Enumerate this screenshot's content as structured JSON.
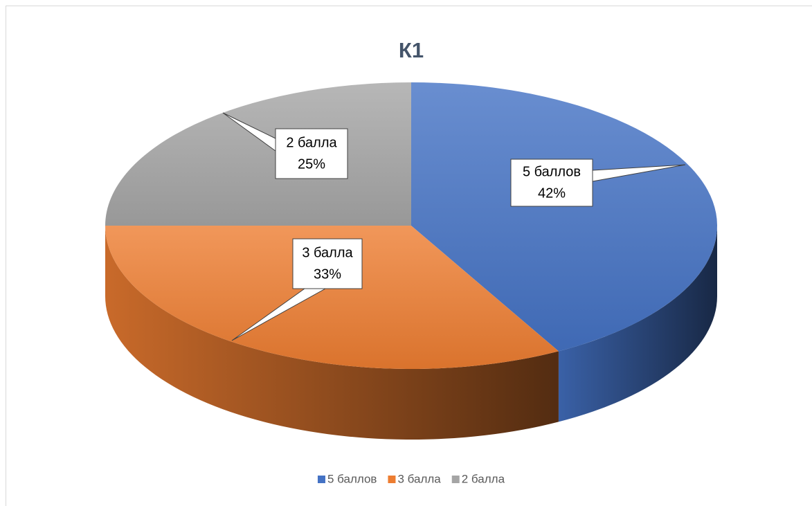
{
  "chart_data": {
    "type": "pie",
    "title": "К1",
    "categories": [
      "5 баллов",
      "3 балла",
      "2 балла"
    ],
    "values": [
      42,
      33,
      25
    ],
    "value_labels": [
      "42%",
      "33%",
      "25%"
    ],
    "colors": [
      "#4472c4",
      "#ed7d31",
      "#a5a5a5"
    ],
    "legend": "bottom"
  }
}
